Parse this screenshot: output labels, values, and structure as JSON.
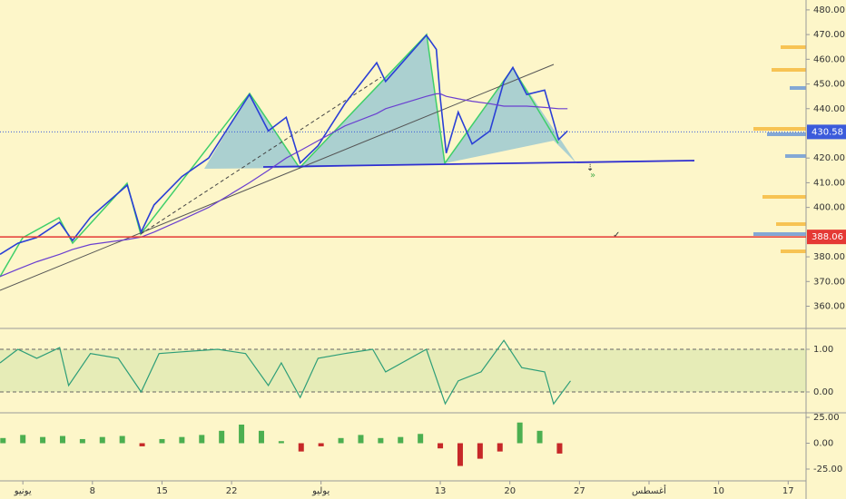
{
  "chart_data": [
    {
      "type": "line",
      "x": [
        -2.3,
        -0.5,
        1.4,
        3.7,
        5.0,
        6.8,
        10.5,
        11.9,
        13.2,
        16.0,
        18.7,
        22.8,
        24.7,
        26.5,
        27.9,
        29.7,
        32.4,
        35.6,
        36.5,
        40.6,
        41.6,
        42.0,
        42.6,
        43.8,
        45.2,
        47.0,
        48.4,
        49.3,
        50.7,
        52.5,
        53.9,
        54.8
      ],
      "series": [
        {
          "color": "#2a3fd6",
          "values": [
            381,
            385.5,
            387.8,
            394,
            386.6,
            396,
            409,
            390,
            401,
            412.5,
            420,
            445.7,
            431,
            436.5,
            418,
            425,
            442,
            458.6,
            451,
            469.7,
            464,
            444,
            422,
            438.6,
            425.7,
            431,
            451,
            456.7,
            445.7,
            447.5,
            427.5,
            431
          ]
        },
        {
          "color": "#6a3fd0",
          "values": [
            372,
            375,
            378,
            381,
            383,
            385,
            387,
            388,
            390,
            395,
            400,
            410,
            415,
            420,
            423,
            427,
            433,
            438,
            440,
            445,
            446,
            446,
            445,
            444,
            443,
            442,
            441,
            441,
            441,
            440.5,
            440,
            440
          ]
        }
      ],
      "ylim": [
        351,
        484
      ],
      "yticks": [
        {
          "value": 480,
          "label": "480.00"
        },
        {
          "value": 470,
          "label": "470.00"
        },
        {
          "value": 460,
          "label": "460.00"
        },
        {
          "value": 450,
          "label": "450.00"
        },
        {
          "value": 440,
          "label": "440.00"
        },
        {
          "value": 420,
          "label": "420.00"
        },
        {
          "value": 410,
          "label": "410.00"
        },
        {
          "value": 400,
          "label": "400.00"
        },
        {
          "value": 380,
          "label": "380.00"
        },
        {
          "value": 370,
          "label": "370.00"
        },
        {
          "value": 360,
          "label": "360.00"
        }
      ],
      "price_lines": [
        {
          "value": 430.58,
          "color": "#3b5bdb"
        },
        {
          "value": 388.06,
          "color": "#e53935"
        }
      ],
      "grid": false
    },
    {
      "type": "line",
      "x": [
        -2.3,
        -0.5,
        1.4,
        3.7,
        4.6,
        6.8,
        9.6,
        11.9,
        13.7,
        16.0,
        19.6,
        22.4,
        24.7,
        26.0,
        27.9,
        29.7,
        32.4,
        35.2,
        36.5,
        40.6,
        42.5,
        43.8,
        46.1,
        48.4,
        50.2,
        52.5,
        53.4,
        55.1
      ],
      "values": [
        0.68,
        1.0,
        0.79,
        1.04,
        0.15,
        0.9,
        0.79,
        0,
        0.9,
        0.94,
        1.0,
        0.9,
        0.15,
        0.68,
        -0.13,
        0.79,
        0.9,
        1.0,
        0.47,
        1.0,
        -0.28,
        0.26,
        0.47,
        1.21,
        0.57,
        0.47,
        -0.28,
        0.26
      ],
      "color": "#2e9e78",
      "ylim": [
        -0.49,
        1.49
      ],
      "yticks": [
        {
          "value": 1,
          "label": "1.00"
        },
        {
          "value": 0,
          "label": "0.00"
        }
      ],
      "grid": true
    },
    {
      "type": "bar",
      "x": [
        -2,
        0,
        2,
        4,
        6,
        8,
        10,
        12,
        14,
        16,
        18,
        20,
        22,
        24,
        26,
        28,
        30,
        32,
        34,
        36,
        38,
        40,
        42,
        44,
        46,
        48,
        50,
        52,
        54
      ],
      "values": [
        5,
        8,
        6,
        7,
        4,
        6,
        7,
        -3,
        4,
        6,
        8,
        12,
        18,
        12,
        2,
        -8,
        -3,
        5,
        8,
        5,
        6,
        9,
        -5,
        -22,
        -15,
        -8,
        20,
        12,
        -10
      ],
      "color": "#4caf50",
      "negative_color": "#c62828",
      "ylim": [
        -36.4,
        29.4
      ],
      "yticks": [
        {
          "value": 25,
          "label": "25.00"
        },
        {
          "value": 0,
          "label": "0.00"
        },
        {
          "value": -25,
          "label": "-25.00"
        }
      ],
      "xlim": [
        -2.3,
        78.8
      ],
      "xticks": [
        {
          "value": 0,
          "label": "يونيو"
        },
        {
          "value": 7,
          "label": "8"
        },
        {
          "value": 14,
          "label": "15"
        },
        {
          "value": 21,
          "label": "22"
        },
        {
          "value": 30,
          "label": "يوليو"
        },
        {
          "value": 42,
          "label": "13"
        },
        {
          "value": 49,
          "label": "20"
        },
        {
          "value": 56,
          "label": "27"
        },
        {
          "value": 63,
          "label": "أغسطس"
        },
        {
          "value": 70,
          "label": "10"
        },
        {
          "value": 77,
          "label": "17"
        }
      ]
    }
  ]
}
